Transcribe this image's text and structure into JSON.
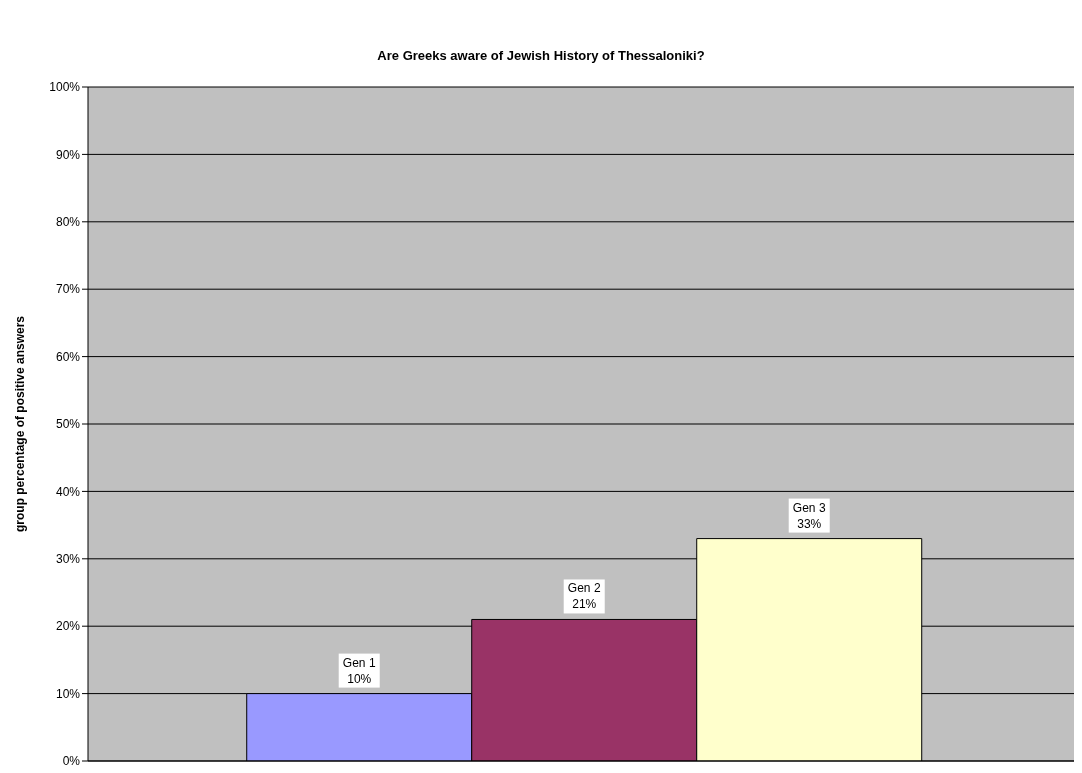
{
  "chart_data": {
    "type": "bar",
    "title": "Are Greeks aware of Jewish History of Thessaloniki?",
    "ylabel": "group percentage of positive answers",
    "categories": [
      null
    ],
    "series": [
      {
        "name": "Gen 1",
        "color": "#9999ff",
        "values": [
          10
        ],
        "value_labels": [
          "10%"
        ]
      },
      {
        "name": "Gen 2",
        "color": "#993366",
        "values": [
          21
        ],
        "value_labels": [
          "21%"
        ]
      },
      {
        "name": "Gen 3",
        "color": "#ffffcc",
        "values": [
          33
        ],
        "value_labels": [
          "33%"
        ]
      }
    ],
    "ylim": [
      0,
      100
    ],
    "yticks": [
      {
        "value": 0,
        "label": "0%"
      },
      {
        "value": 10,
        "label": "10%"
      },
      {
        "value": 20,
        "label": "20%"
      },
      {
        "value": 30,
        "label": "30%"
      },
      {
        "value": 40,
        "label": "40%"
      },
      {
        "value": 50,
        "label": "50%"
      },
      {
        "value": 60,
        "label": "60%"
      },
      {
        "value": 70,
        "label": "70%"
      },
      {
        "value": 80,
        "label": "80%"
      },
      {
        "value": 90,
        "label": "90%"
      },
      {
        "value": 100,
        "label": "100%"
      }
    ],
    "grid": "y",
    "legend": false
  }
}
